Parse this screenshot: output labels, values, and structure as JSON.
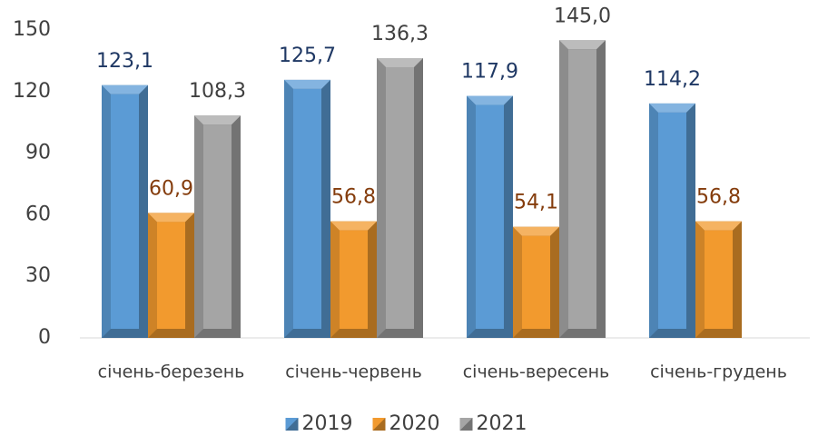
{
  "chart_data": {
    "type": "bar",
    "categories": [
      "січень-березень",
      "січень-червень",
      "січень-вересень",
      "січень-грудень"
    ],
    "series": [
      {
        "name": "2019",
        "color": "#5b9bd5",
        "label_color": "#1f3864",
        "values": [
          123.1,
          125.7,
          117.9,
          114.2
        ],
        "value_labels": [
          "123,1",
          "125,7",
          "117,9",
          "114,2"
        ]
      },
      {
        "name": "2020",
        "color": "#f29a2e",
        "label_color": "#843c0c",
        "values": [
          60.9,
          56.8,
          54.1,
          56.8
        ],
        "value_labels": [
          "60,9",
          "56,8",
          "54,1",
          "56,8"
        ]
      },
      {
        "name": "2021",
        "color": "#a5a5a5",
        "label_color": "#404040",
        "values": [
          108.3,
          136.3,
          145.0,
          null
        ],
        "value_labels": [
          "108,3",
          "136,3",
          "145,0",
          null
        ]
      }
    ],
    "ylim": [
      0,
      150
    ],
    "yticks": [
      0,
      30,
      60,
      90,
      120,
      150
    ],
    "grid": false,
    "legend": "bottom"
  }
}
